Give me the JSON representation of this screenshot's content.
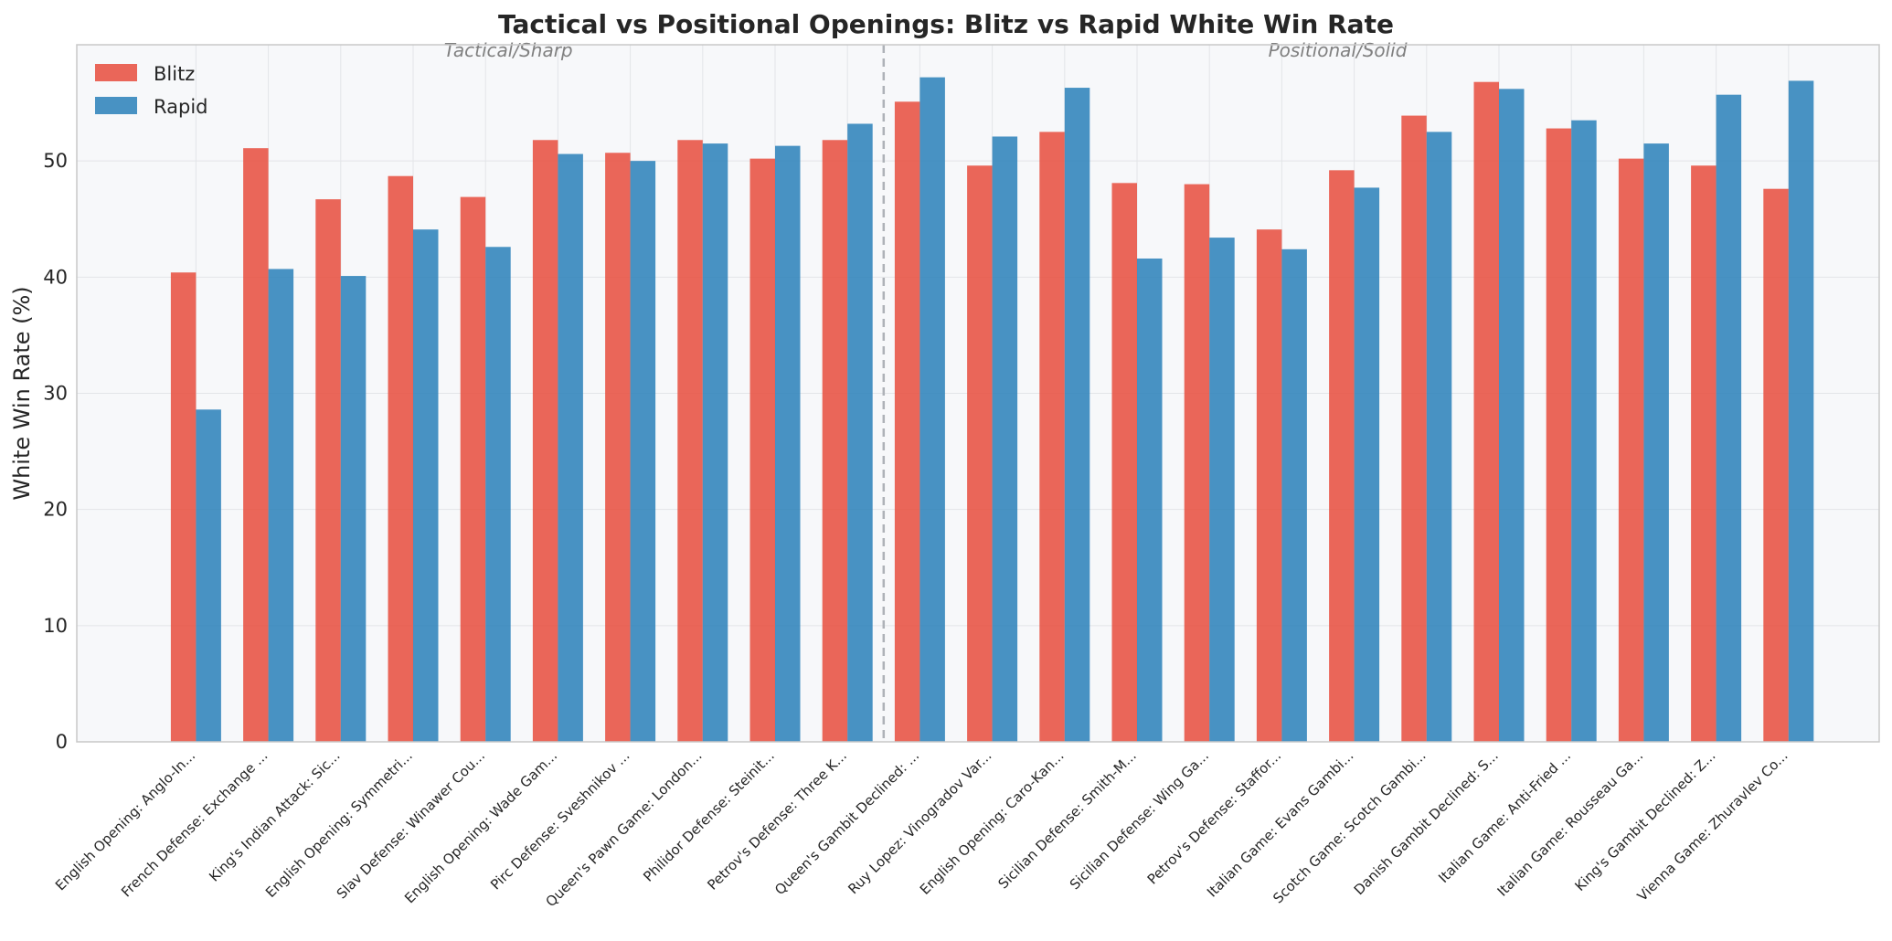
{
  "chart_data": {
    "type": "bar",
    "title": "Tactical vs Positional Openings: Blitz vs Rapid White Win Rate",
    "xlabel": "",
    "ylabel": "White Win Rate (%)",
    "ylim": [
      0,
      60
    ],
    "yticks": [
      "0",
      "10",
      "20",
      "30",
      "40",
      "50"
    ],
    "grid": true,
    "legend_position": "top-left",
    "categories": [
      "English Opening: Anglo-In...",
      "French Defense: Exchange ...",
      "King's Indian Attack: Sic...",
      "English Opening: Symmetri...",
      "Slav Defense: Winawer Cou...",
      "English Opening: Wade Gam...",
      "Pirc Defense: Sveshnikov ...",
      "Queen's Pawn Game: London...",
      "Philidor Defense: Steinit...",
      "Petrov's Defense: Three K...",
      "Queen's Gambit Declined: ...",
      "Ruy Lopez: Vinogradov Var...",
      "English Opening: Caro-Kan...",
      "Sicilian Defense: Smith-M...",
      "Sicilian Defense: Wing Ga...",
      "Petrov's Defense: Staffor...",
      "Italian Game: Evans Gambi...",
      "Scotch Game: Scotch Gambi...",
      "Danish Gambit Declined: S...",
      "Italian Game: Anti-Fried ...",
      "Italian Game: Rousseau Ga...",
      "King's Gambit Declined: Z...",
      "Vienna Game: Zhuravlev Co..."
    ],
    "series": [
      {
        "name": "Blitz",
        "color": "#e74c3c",
        "values": [
          40.4,
          51.1,
          46.7,
          48.7,
          46.9,
          51.8,
          50.7,
          51.8,
          50.2,
          51.8,
          55.1,
          49.6,
          52.5,
          48.1,
          48.0,
          44.1,
          49.2,
          53.9,
          56.8,
          52.8,
          50.2,
          49.6,
          47.6
        ]
      },
      {
        "name": "Rapid",
        "color": "#2980b9",
        "values": [
          28.6,
          40.7,
          40.1,
          44.1,
          42.6,
          50.6,
          50.0,
          51.5,
          51.3,
          53.2,
          57.2,
          52.1,
          56.3,
          41.6,
          43.4,
          42.4,
          47.7,
          52.5,
          56.2,
          53.5,
          51.5,
          55.7,
          56.9
        ]
      }
    ],
    "separator_after_index": 9,
    "group_labels": [
      "Tactical/Sharp",
      "Positional/Solid"
    ]
  }
}
